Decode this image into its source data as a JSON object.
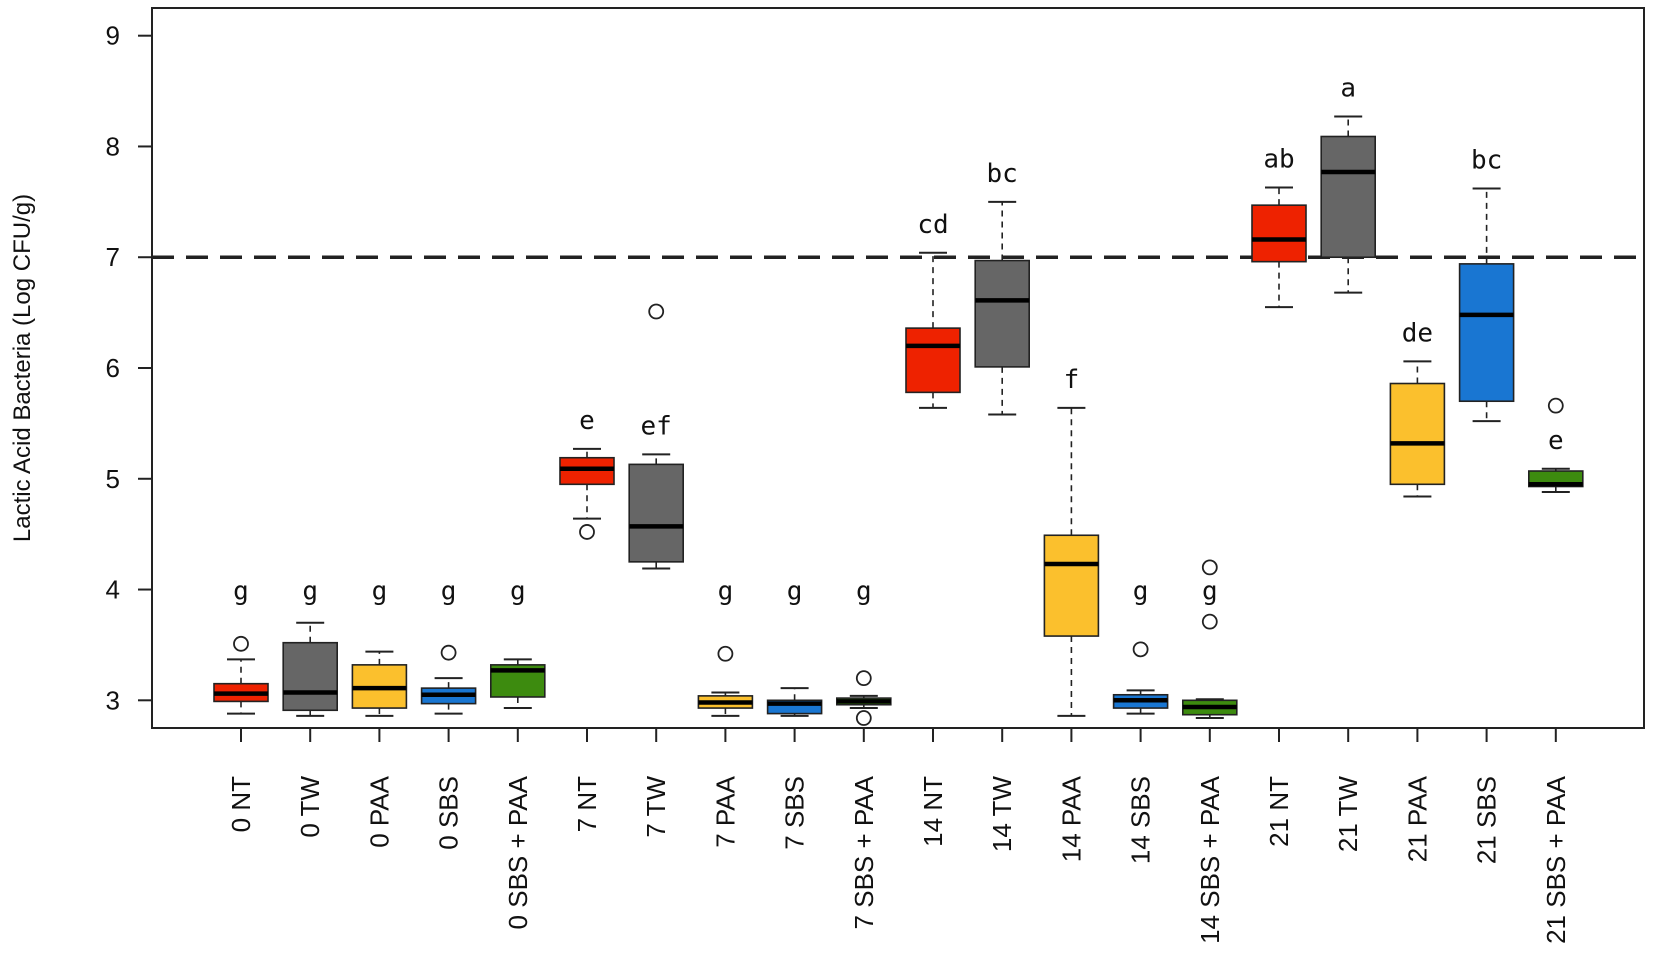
{
  "chart_data": {
    "type": "boxplot",
    "title": "",
    "xlabel": "",
    "ylabel": "Lactic Acid Bacteria (Log CFU/g)",
    "ylim": [
      2.75,
      9.25
    ],
    "yticks": [
      3,
      4,
      5,
      6,
      7,
      8,
      9
    ],
    "threshold": 7,
    "colors": {
      "NT": "#ee2200",
      "TW": "#666666",
      "PAA": "#fbc02d",
      "SBS": "#1976d2",
      "SBS+PAA": "#3d8b0f"
    },
    "boxes": [
      {
        "label": "0 NT",
        "treatment": "NT",
        "min": 2.88,
        "q1": 2.99,
        "median": 3.06,
        "q3": 3.15,
        "max": 3.37,
        "outliers": [
          3.51
        ],
        "letter": "g"
      },
      {
        "label": "0 TW",
        "treatment": "TW",
        "min": 2.86,
        "q1": 2.91,
        "median": 3.07,
        "q3": 3.52,
        "max": 3.7,
        "outliers": [],
        "letter": "g"
      },
      {
        "label": "0 PAA",
        "treatment": "PAA",
        "min": 2.86,
        "q1": 2.93,
        "median": 3.11,
        "q3": 3.32,
        "max": 3.44,
        "outliers": [],
        "letter": "g"
      },
      {
        "label": "0 SBS",
        "treatment": "SBS",
        "min": 2.88,
        "q1": 2.97,
        "median": 3.05,
        "q3": 3.11,
        "max": 3.2,
        "outliers": [
          3.43
        ],
        "letter": "g"
      },
      {
        "label": "0 SBS + PAA",
        "treatment": "SBS+PAA",
        "min": 2.93,
        "q1": 3.03,
        "median": 3.27,
        "q3": 3.32,
        "max": 3.37,
        "outliers": [],
        "letter": "g"
      },
      {
        "label": "7 NT",
        "treatment": "NT",
        "min": 4.64,
        "q1": 4.95,
        "median": 5.09,
        "q3": 5.19,
        "max": 5.27,
        "outliers": [
          4.52
        ],
        "letter": "e"
      },
      {
        "label": "7 TW",
        "treatment": "TW",
        "min": 4.19,
        "q1": 4.25,
        "median": 4.57,
        "q3": 5.13,
        "max": 5.22,
        "outliers": [
          6.51
        ],
        "letter": "ef"
      },
      {
        "label": "7 PAA",
        "treatment": "PAA",
        "min": 2.86,
        "q1": 2.93,
        "median": 2.98,
        "q3": 3.04,
        "max": 3.07,
        "outliers": [
          3.42
        ],
        "letter": "g"
      },
      {
        "label": "7 SBS",
        "treatment": "SBS",
        "min": 2.86,
        "q1": 2.88,
        "median": 2.97,
        "q3": 3.0,
        "max": 3.11,
        "outliers": [],
        "letter": "g"
      },
      {
        "label": "7 SBS + PAA",
        "treatment": "SBS+PAA",
        "min": 2.93,
        "q1": 2.96,
        "median": 2.99,
        "q3": 3.02,
        "max": 3.04,
        "outliers": [
          3.2,
          2.84
        ],
        "letter": "g"
      },
      {
        "label": "14 NT",
        "treatment": "NT",
        "min": 5.64,
        "q1": 5.78,
        "median": 6.2,
        "q3": 6.36,
        "max": 7.04,
        "outliers": [],
        "letter": "cd"
      },
      {
        "label": "14 TW",
        "treatment": "TW",
        "min": 5.58,
        "q1": 6.01,
        "median": 6.61,
        "q3": 6.97,
        "max": 7.5,
        "outliers": [],
        "letter": "bc"
      },
      {
        "label": "14 PAA",
        "treatment": "PAA",
        "min": 2.86,
        "q1": 3.58,
        "median": 4.23,
        "q3": 4.49,
        "max": 5.64,
        "outliers": [],
        "letter": "f"
      },
      {
        "label": "14 SBS",
        "treatment": "SBS",
        "min": 2.88,
        "q1": 2.93,
        "median": 3.0,
        "q3": 3.05,
        "max": 3.09,
        "outliers": [
          3.46
        ],
        "letter": "g"
      },
      {
        "label": "14 SBS + PAA",
        "treatment": "SBS+PAA",
        "min": 2.84,
        "q1": 2.87,
        "median": 2.94,
        "q3": 3.0,
        "max": 3.01,
        "outliers": [
          4.2,
          3.71
        ],
        "letter": "g"
      },
      {
        "label": "21 NT",
        "treatment": "NT",
        "min": 6.55,
        "q1": 6.96,
        "median": 7.16,
        "q3": 7.47,
        "max": 7.63,
        "outliers": [],
        "letter": "ab"
      },
      {
        "label": "21 TW",
        "treatment": "TW",
        "min": 6.68,
        "q1": 7.0,
        "median": 7.77,
        "q3": 8.09,
        "max": 8.27,
        "outliers": [],
        "letter": "a"
      },
      {
        "label": "21 PAA",
        "treatment": "PAA",
        "min": 4.84,
        "q1": 4.95,
        "median": 5.32,
        "q3": 5.86,
        "max": 6.06,
        "outliers": [],
        "letter": "de"
      },
      {
        "label": "21 SBS",
        "treatment": "SBS",
        "min": 5.52,
        "q1": 5.7,
        "median": 6.48,
        "q3": 6.94,
        "max": 7.62,
        "outliers": [],
        "letter": "bc"
      },
      {
        "label": "21 SBS + PAA",
        "treatment": "SBS+PAA",
        "min": 4.88,
        "q1": 4.93,
        "median": 4.95,
        "q3": 5.07,
        "max": 5.09,
        "outliers": [
          5.66
        ],
        "letter": "e"
      }
    ]
  }
}
